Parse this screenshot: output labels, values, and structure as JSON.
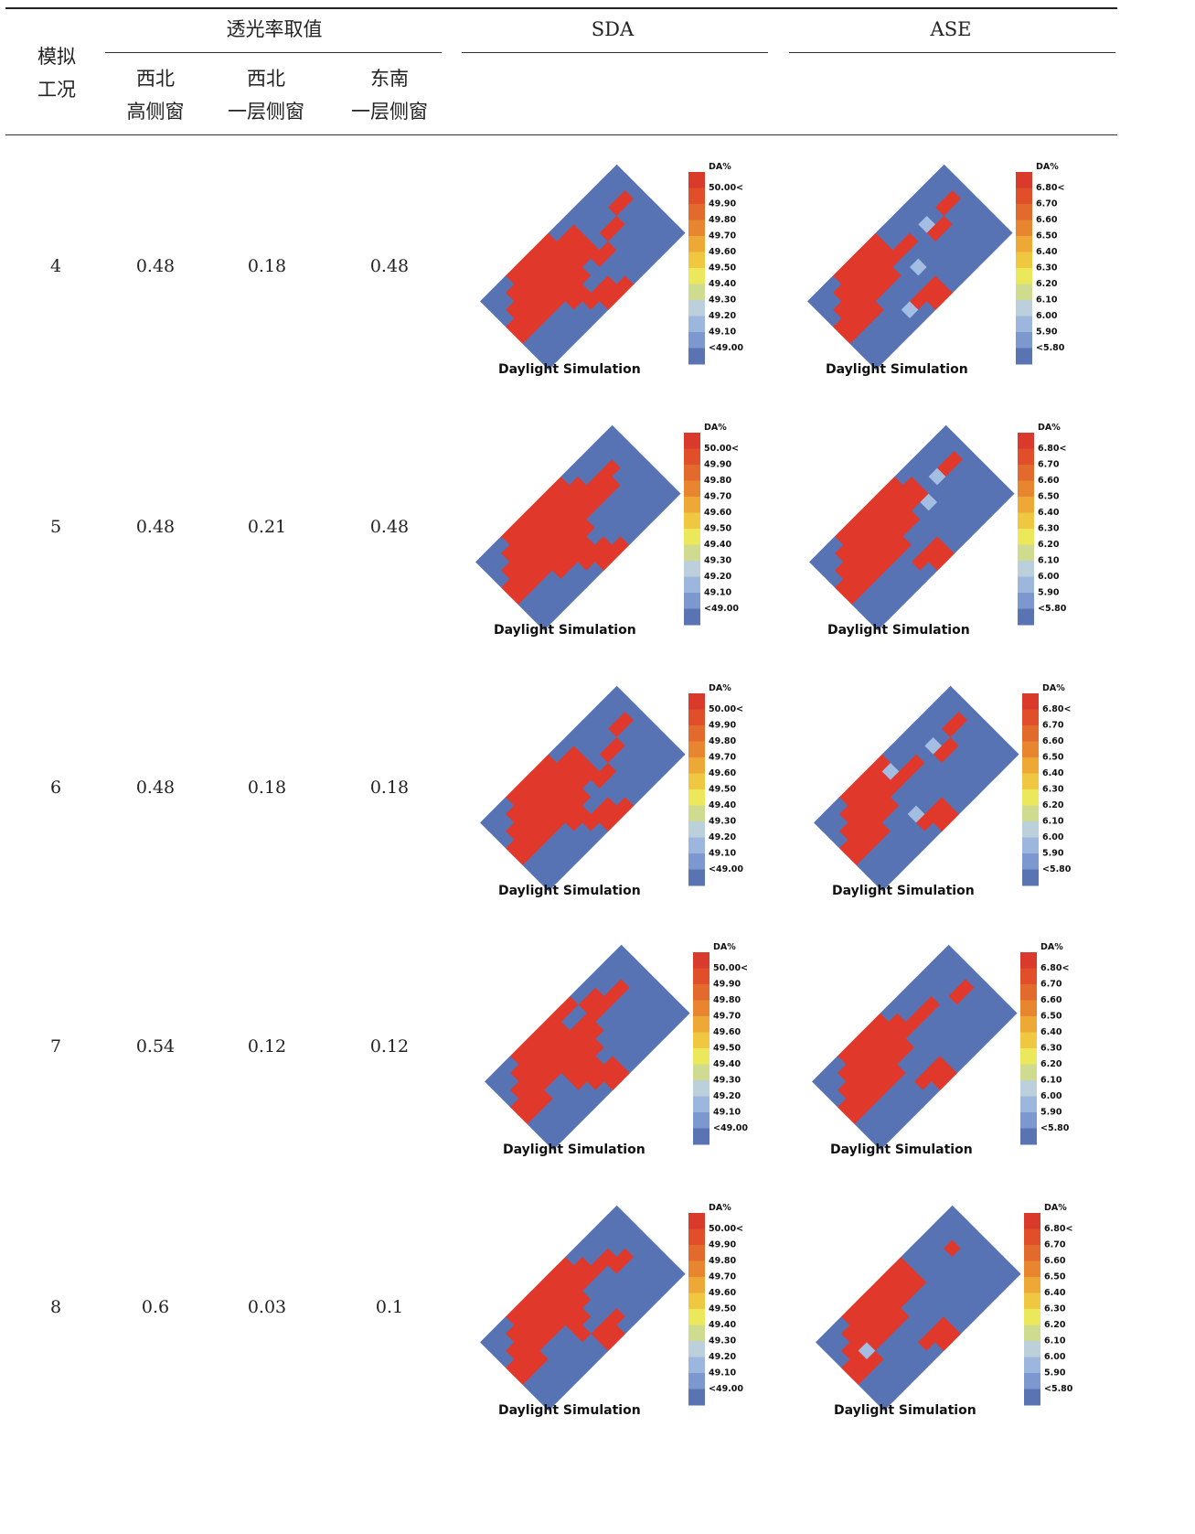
{
  "headers": {
    "condition": [
      "模拟",
      "工况"
    ],
    "transmittance": "透光率取值",
    "sda": "SDA",
    "ase": "ASE",
    "sub": [
      [
        "西北",
        "高侧窗"
      ],
      [
        "西北",
        "一层侧窗"
      ],
      [
        "东南",
        "一层侧窗"
      ]
    ]
  },
  "legend": {
    "title": "DA%",
    "sda_labels": [
      "50.00<",
      "49.90",
      "49.80",
      "49.70",
      "49.60",
      "49.50",
      "49.40",
      "49.30",
      "49.20",
      "49.10",
      "<49.00"
    ],
    "ase_labels": [
      "6.80<",
      "6.70",
      "6.60",
      "6.50",
      "6.40",
      "6.30",
      "6.20",
      "6.10",
      "6.00",
      "5.90",
      "<5.80"
    ],
    "colors": [
      "#d93a2b",
      "#e04e2a",
      "#e26a2c",
      "#e8862f",
      "#eda836",
      "#f0c741",
      "#ece85c",
      "#cfdc8f",
      "#bcd0dc",
      "#9db6de",
      "#7d98cf",
      "#5a74b3"
    ]
  },
  "plan_label": "Daylight Simulation",
  "rows": [
    {
      "id": "4",
      "values": [
        "0.48",
        "0.18",
        "0.48"
      ]
    },
    {
      "id": "5",
      "values": [
        "0.48",
        "0.21",
        "0.48"
      ]
    },
    {
      "id": "6",
      "values": [
        "0.48",
        "0.18",
        "0.18"
      ]
    },
    {
      "id": "7",
      "values": [
        "0.54",
        "0.12",
        "0.12"
      ]
    },
    {
      "id": "8",
      "values": [
        "0.6",
        "0.03",
        "0.1"
      ]
    }
  ],
  "colors": {
    "lit": "#e0382b",
    "unlit": "#5773b3",
    "partial": "#a4bde3"
  }
}
